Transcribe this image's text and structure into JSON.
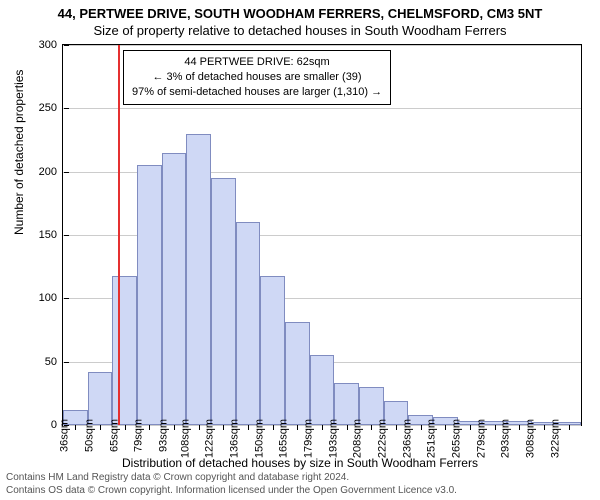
{
  "header": {
    "title": "44, PERTWEE DRIVE, SOUTH WOODHAM FERRERS, CHELMSFORD, CM3 5NT",
    "subtitle": "Size of property relative to detached houses in South Woodham Ferrers"
  },
  "chart": {
    "type": "histogram",
    "xlabel": "Distribution of detached houses by size in South Woodham Ferrers",
    "ylabel": "Number of detached properties",
    "ylim": [
      0,
      300
    ],
    "ytick_step": 50,
    "xlim_sqm": [
      30,
      327
    ],
    "xtick_start": 36,
    "xtick_step": 14.3,
    "xtick_count": 21,
    "xtick_suffix": "sqm",
    "bar_color": "#cfd8f5",
    "bar_border": "#808cc0",
    "grid_color": "#cccccc",
    "background_color": "#ffffff",
    "reference_line": {
      "sqm": 62,
      "color": "#e53030"
    },
    "bars": [
      {
        "sqm": 36,
        "count": 12
      },
      {
        "sqm": 50,
        "count": 42
      },
      {
        "sqm": 64,
        "count": 118
      },
      {
        "sqm": 79,
        "count": 205
      },
      {
        "sqm": 93,
        "count": 215
      },
      {
        "sqm": 107,
        "count": 230
      },
      {
        "sqm": 121,
        "count": 195
      },
      {
        "sqm": 135,
        "count": 160
      },
      {
        "sqm": 150,
        "count": 118
      },
      {
        "sqm": 164,
        "count": 81
      },
      {
        "sqm": 178,
        "count": 55
      },
      {
        "sqm": 192,
        "count": 33
      },
      {
        "sqm": 206,
        "count": 30
      },
      {
        "sqm": 221,
        "count": 19
      },
      {
        "sqm": 235,
        "count": 8
      },
      {
        "sqm": 249,
        "count": 6
      },
      {
        "sqm": 263,
        "count": 3
      },
      {
        "sqm": 277,
        "count": 3
      },
      {
        "sqm": 292,
        "count": 3
      },
      {
        "sqm": 306,
        "count": 2
      },
      {
        "sqm": 320,
        "count": 2
      }
    ],
    "annotation": {
      "line1": "44 PERTWEE DRIVE: 62sqm",
      "line2": "← 3% of detached houses are smaller (39)",
      "line3": "97% of semi-detached houses are larger (1,310) →"
    }
  },
  "footer": {
    "copyright1": "Contains HM Land Registry data © Crown copyright and database right 2024.",
    "copyright2": "Contains OS data © Crown copyright. Information licensed under the Open Government Licence v3.0."
  }
}
